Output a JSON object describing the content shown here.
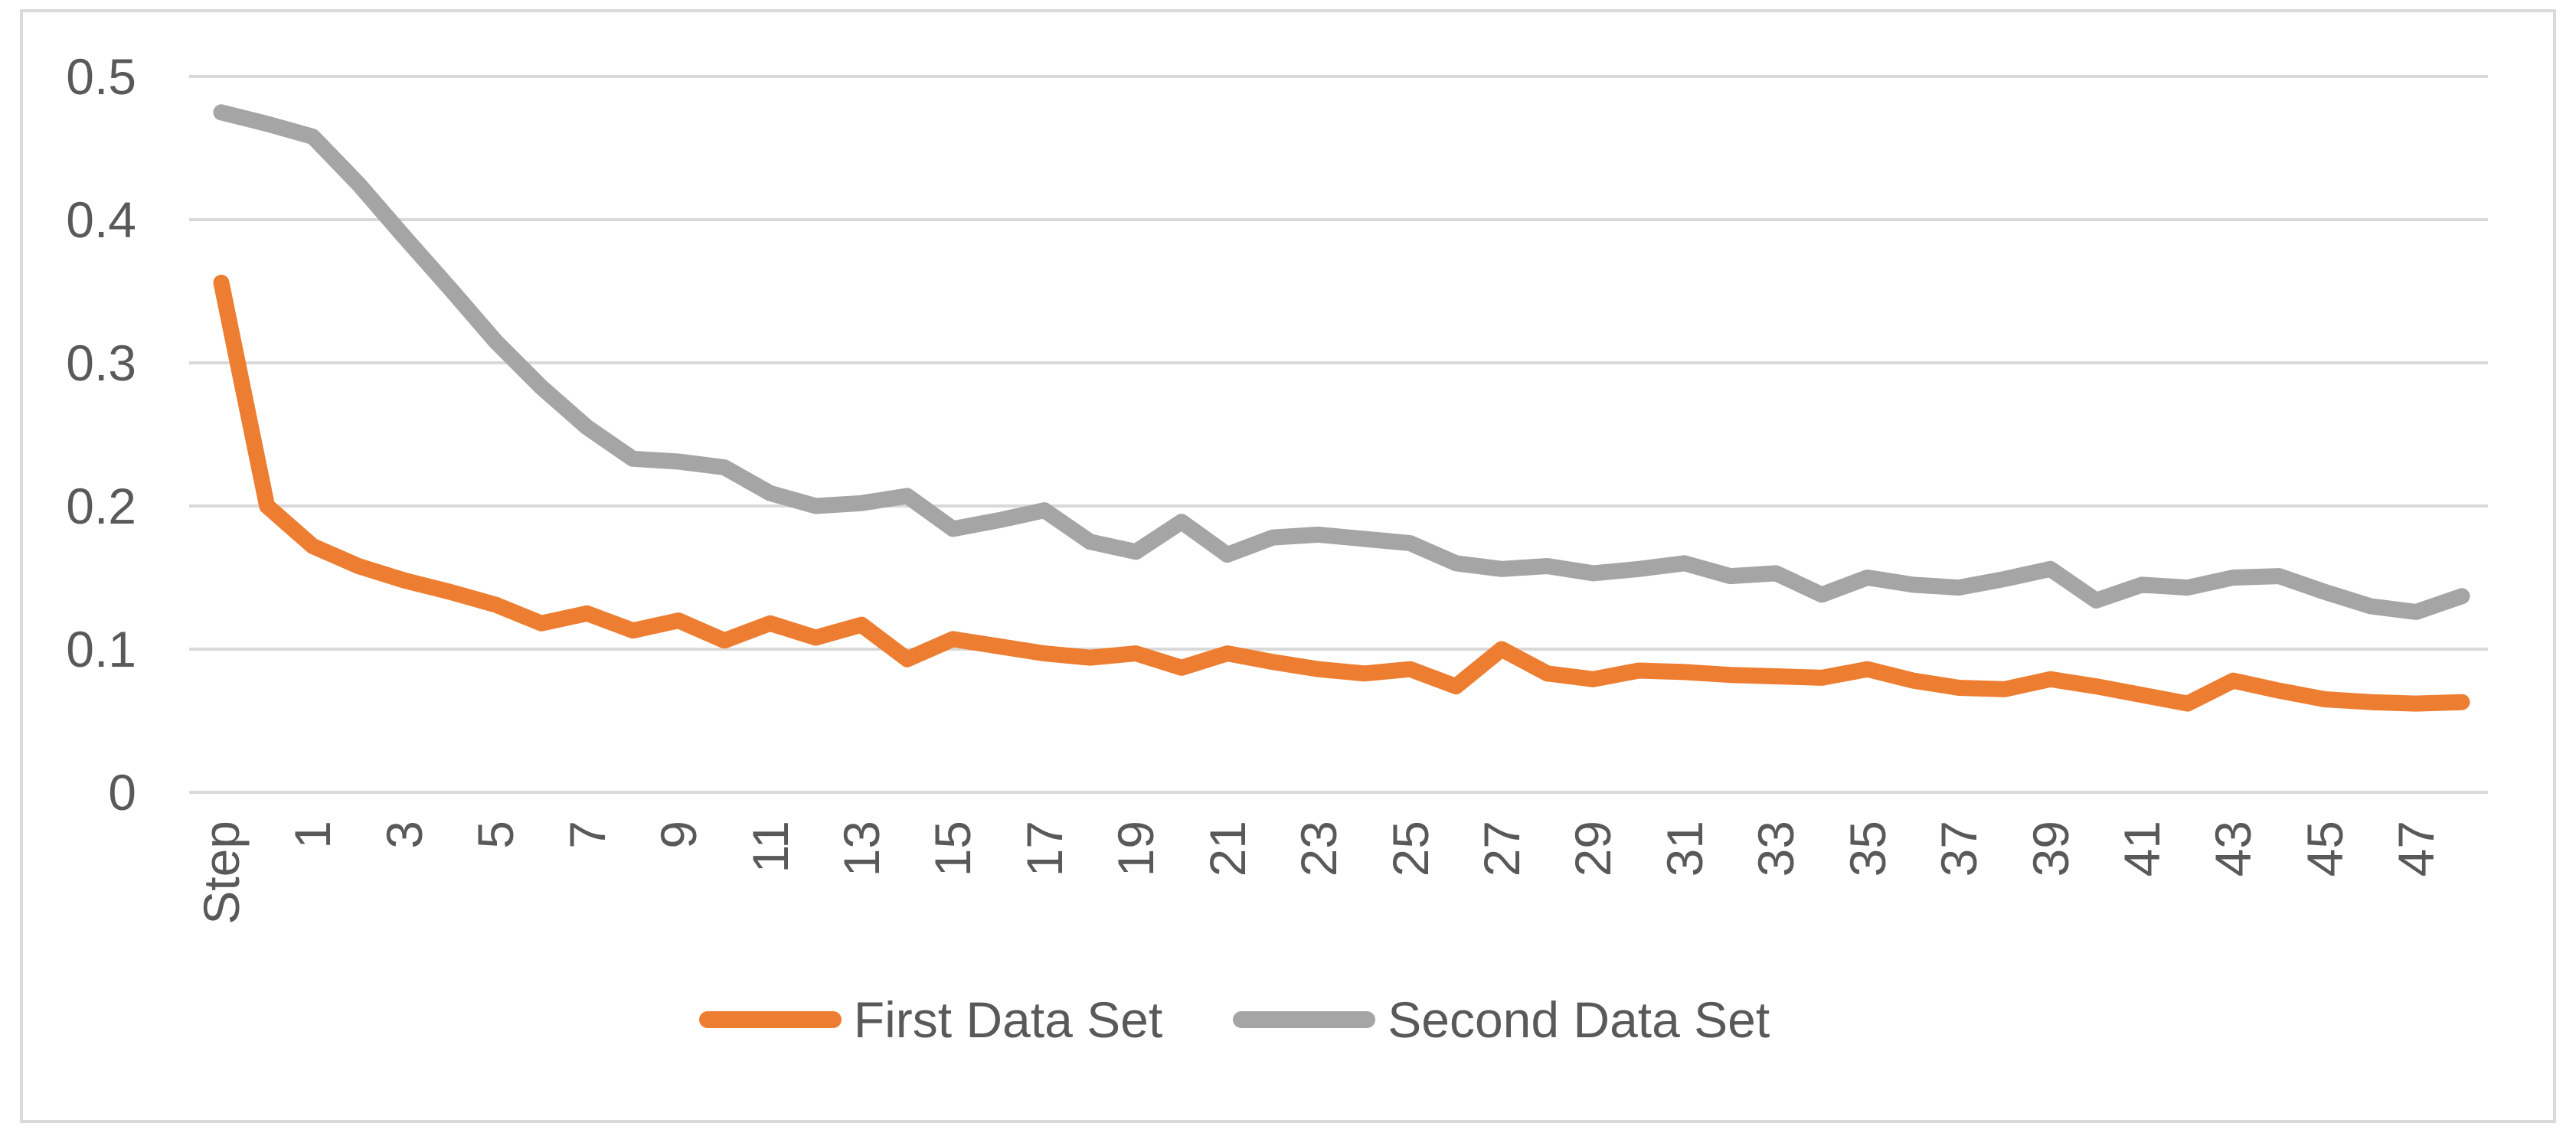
{
  "chart_data": {
    "type": "line",
    "title": "",
    "x_first_category": "Step",
    "x_tick_labels": [
      "Step",
      "1",
      "3",
      "5",
      "7",
      "9",
      "11",
      "13",
      "15",
      "17",
      "19",
      "21",
      "23",
      "25",
      "27",
      "29",
      "31",
      "33",
      "35",
      "37",
      "39",
      "41",
      "43",
      "45",
      "47"
    ],
    "ytick_labels": [
      "0.5",
      "0.4",
      "0.3",
      "0.2",
      "0.1",
      "0"
    ],
    "ylim": [
      0,
      0.5
    ],
    "grid": true,
    "legend_position": "bottom",
    "series": [
      {
        "name": "First Data Set",
        "color": "#ED7D31",
        "values": [
          0.356,
          0.2,
          0.172,
          0.158,
          0.148,
          0.14,
          0.131,
          0.118,
          0.125,
          0.113,
          0.12,
          0.106,
          0.118,
          0.108,
          0.117,
          0.093,
          0.107,
          0.102,
          0.097,
          0.094,
          0.097,
          0.087,
          0.097,
          0.091,
          0.086,
          0.083,
          0.086,
          0.074,
          0.1,
          0.083,
          0.079,
          0.085,
          0.084,
          0.082,
          0.081,
          0.08,
          0.086,
          0.078,
          0.073,
          0.072,
          0.079,
          0.074,
          0.068,
          0.062,
          0.078,
          0.071,
          0.065,
          0.063,
          0.062,
          0.063
        ]
      },
      {
        "name": "Second Data Set",
        "color": "#A5A5A5",
        "values": [
          0.475,
          0.467,
          0.458,
          0.425,
          0.388,
          0.352,
          0.315,
          0.283,
          0.255,
          0.233,
          0.231,
          0.227,
          0.209,
          0.2,
          0.202,
          0.207,
          0.184,
          0.19,
          0.197,
          0.175,
          0.168,
          0.189,
          0.166,
          0.178,
          0.18,
          0.177,
          0.174,
          0.16,
          0.156,
          0.158,
          0.153,
          0.156,
          0.16,
          0.151,
          0.153,
          0.138,
          0.15,
          0.145,
          0.143,
          0.149,
          0.156,
          0.134,
          0.145,
          0.143,
          0.15,
          0.151,
          0.14,
          0.13,
          0.126,
          0.137
        ]
      }
    ]
  },
  "colors": {
    "gridline": "#D9D9D9",
    "frame_border": "#D9D9D9",
    "axis_text": "#595959",
    "background": "#FFFFFF"
  },
  "legend": {
    "items": [
      {
        "label": "First Data Set",
        "color": "#ED7D31"
      },
      {
        "label": "Second Data Set",
        "color": "#A5A5A5"
      }
    ]
  }
}
